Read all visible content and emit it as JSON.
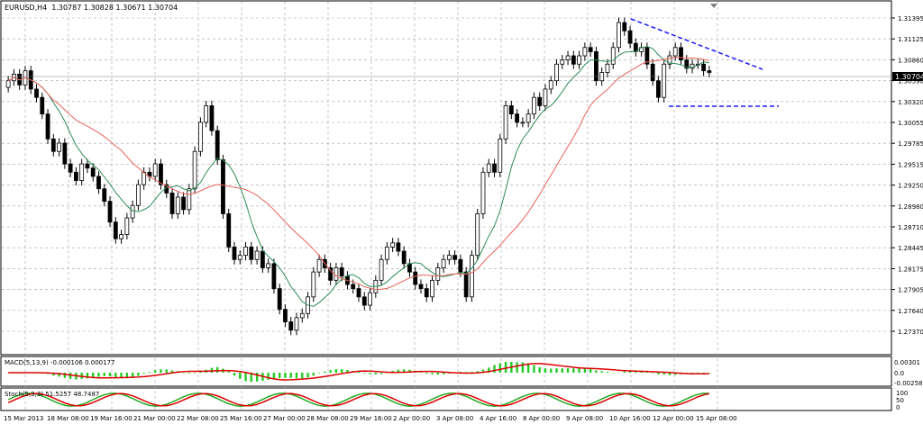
{
  "header": {
    "symbol_tf": "EURUSD,H4",
    "ohlc": "1.30787 1.30828 1.30671 1.30704"
  },
  "price_axis": {
    "ticks": [
      "1.31395",
      "1.31125",
      "1.30860",
      "1.30590",
      "1.30320",
      "1.30055",
      "1.29785",
      "1.29515",
      "1.29250",
      "1.28980",
      "1.28710",
      "1.28445",
      "1.28175",
      "1.27905",
      "1.27640",
      "1.27370"
    ],
    "current": "1.30704"
  },
  "time_axis": {
    "ticks": [
      "15 Mar 2013",
      "18 Mar 08:00",
      "19 Mar 16:00",
      "21 Mar 00:00",
      "22 Mar 08:00",
      "25 Mar 16:00",
      "27 Mar 00:00",
      "28 Mar 08:00",
      "29 Mar 16:00",
      "2 Apr 00:00",
      "3 Apr 08:00",
      "4 Apr 16:00",
      "8 Apr 00:00",
      "9 Apr 08:00",
      "10 Apr 16:00",
      "12 Apr 00:00",
      "15 Apr 08:00"
    ]
  },
  "macd": {
    "label": "MACD(5,13,9) -0.000106 0.000177",
    "ticks": [
      "0.00301",
      "0.0",
      "-0.00258"
    ]
  },
  "stoch": {
    "label": "Stoch(5,3,3) 51.5257 48.7487",
    "ticks": [
      "100",
      "50",
      "0"
    ]
  },
  "colors": {
    "bull": "#ffffff",
    "bear": "#000000",
    "fast_ma": "#2e8b57",
    "slow_ma": "#e8635a",
    "trend": "#1a1aff",
    "macd_hist": "#22cc22",
    "macd_signal": "#dd0000",
    "stoch_main": "#22aa22",
    "stoch_signal": "#dd0000"
  },
  "chart_data": {
    "type": "candlestick",
    "y_range": [
      1.2737,
      1.3142
    ],
    "closes": [
      1.306,
      1.3068,
      1.3055,
      1.3072,
      1.305,
      1.304,
      1.302,
      1.299,
      1.2975,
      1.2985,
      1.296,
      1.295,
      1.294,
      1.296,
      1.2955,
      1.2945,
      1.293,
      1.2915,
      1.289,
      1.287,
      1.2875,
      1.2895,
      1.291,
      1.2935,
      1.295,
      1.2945,
      1.296,
      1.2935,
      1.2925,
      1.29,
      1.292,
      1.2905,
      1.293,
      1.2975,
      1.301,
      1.303,
      1.3,
      1.2965,
      1.29,
      1.286,
      1.2845,
      1.285,
      1.286,
      1.2845,
      1.2855,
      1.2835,
      1.284,
      1.281,
      1.2785,
      1.277,
      1.276,
      1.2775,
      1.278,
      1.28,
      1.283,
      1.2845,
      1.2835,
      1.282,
      1.2835,
      1.2825,
      1.2815,
      1.281,
      1.28,
      1.279,
      1.2805,
      1.282,
      1.2845,
      1.286,
      1.2865,
      1.2855,
      1.284,
      1.283,
      1.2815,
      1.281,
      1.28,
      1.282,
      1.2835,
      1.2845,
      1.285,
      1.2845,
      1.283,
      1.28,
      1.285,
      1.29,
      1.295,
      1.296,
      1.295,
      1.299,
      1.303,
      1.302,
      1.301,
      1.301,
      1.302,
      1.304,
      1.303,
      1.305,
      1.306,
      1.308,
      1.3085,
      1.309,
      1.308,
      1.309,
      1.31,
      1.3095,
      1.306,
      1.307,
      1.308,
      1.31,
      1.313,
      1.312,
      1.3105,
      1.3095,
      1.31,
      1.308,
      1.306,
      1.304,
      1.308,
      1.309,
      1.31,
      1.3085,
      1.3075,
      1.308,
      1.308,
      1.3072,
      1.307
    ]
  }
}
